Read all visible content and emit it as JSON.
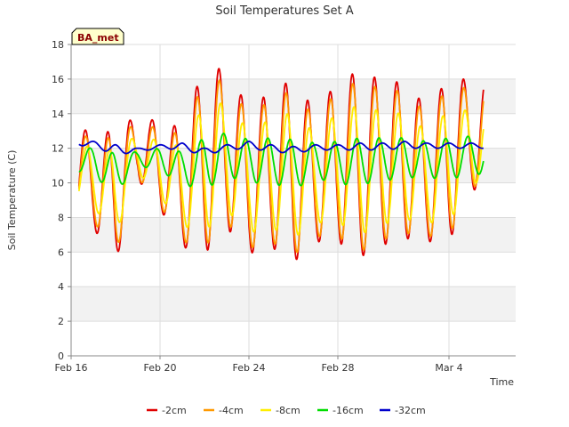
{
  "chart_data": {
    "type": "line",
    "title": "Soil Temperatures Set A",
    "xlabel": "Time",
    "ylabel": "Soil Temperature (C)",
    "badge": "BA_met",
    "ylim": [
      0,
      18
    ],
    "yticks": [
      0,
      2,
      4,
      6,
      8,
      10,
      12,
      14,
      16,
      18
    ],
    "xlim": [
      "2024-02-16",
      "2024-03-07"
    ],
    "xticks": [
      {
        "date": "2024-02-16",
        "label": "Feb 16"
      },
      {
        "date": "2024-02-20",
        "label": "Feb 20"
      },
      {
        "date": "2024-02-24",
        "label": "Feb 24"
      },
      {
        "date": "2024-02-28",
        "label": "Feb 28"
      },
      {
        "date": "2024-03-04",
        "label": "Mar 4"
      }
    ],
    "grid": true,
    "legend": "bottom",
    "dates": [
      "2024-02-16",
      "2024-02-17",
      "2024-02-18",
      "2024-02-19",
      "2024-02-20",
      "2024-02-21",
      "2024-02-22",
      "2024-02-23",
      "2024-02-24",
      "2024-02-25",
      "2024-02-26",
      "2024-02-27",
      "2024-02-28",
      "2024-02-29",
      "2024-03-01",
      "2024-03-02",
      "2024-03-03",
      "2024-03-04",
      "2024-03-05"
    ],
    "series": [
      {
        "name": "-2cm",
        "color": "#e00000",
        "phase": 0.65,
        "min": [
          8.2,
          7.4,
          5.4,
          10.2,
          8.5,
          6.3,
          5.9,
          7.4,
          5.9,
          6.3,
          5.4,
          6.6,
          6.6,
          5.7,
          6.4,
          6.8,
          6.6,
          6.6,
          9.6
        ],
        "max": [
          13.7,
          12.7,
          13.1,
          13.9,
          13.5,
          13.2,
          16.8,
          16.5,
          14.3,
          15.3,
          16.0,
          14.1,
          15.9,
          16.5,
          15.9,
          15.8,
          14.4,
          16.0,
          16.0
        ]
      },
      {
        "name": "-4cm",
        "color": "#ff9900",
        "phase": 0.67,
        "min": [
          8.6,
          7.8,
          5.9,
          10.3,
          8.7,
          6.6,
          6.3,
          7.7,
          6.2,
          6.6,
          5.8,
          6.9,
          6.9,
          6.0,
          6.7,
          7.1,
          6.9,
          6.9,
          9.8
        ],
        "max": [
          13.3,
          12.4,
          12.7,
          13.5,
          13.1,
          12.8,
          16.0,
          15.9,
          13.9,
          14.8,
          15.4,
          13.7,
          15.4,
          15.9,
          15.4,
          15.3,
          14.0,
          15.5,
          15.5
        ]
      },
      {
        "name": "-8cm",
        "color": "#ffee00",
        "phase": 0.72,
        "min": [
          9.2,
          8.6,
          7.0,
          10.6,
          9.2,
          7.5,
          7.2,
          8.4,
          7.1,
          7.4,
          6.8,
          7.7,
          7.7,
          7.0,
          7.6,
          7.9,
          7.7,
          7.7,
          10.0
        ],
        "max": [
          12.6,
          11.9,
          11.9,
          12.8,
          12.4,
          12.1,
          14.6,
          14.6,
          13.0,
          13.7,
          14.1,
          12.8,
          14.1,
          14.5,
          14.1,
          14.0,
          13.0,
          14.2,
          14.2
        ]
      },
      {
        "name": "-16cm",
        "color": "#00dd00",
        "phase": 0.85,
        "min": [
          10.8,
          10.4,
          9.4,
          11.0,
          10.7,
          9.9,
          9.6,
          10.4,
          10.0,
          10.0,
          9.6,
          10.3,
          9.9,
          9.9,
          10.1,
          10.3,
          10.3,
          10.2,
          10.5
        ],
        "max": [
          12.1,
          12.0,
          11.7,
          11.8,
          12.0,
          11.8,
          12.6,
          12.9,
          12.5,
          12.6,
          12.5,
          12.3,
          12.4,
          12.6,
          12.6,
          12.6,
          12.4,
          12.6,
          12.7
        ]
      },
      {
        "name": "-32cm",
        "color": "#0000cc",
        "phase": 0.0,
        "min": [
          12.2,
          12.1,
          11.6,
          11.8,
          12.0,
          11.9,
          11.6,
          11.9,
          12.0,
          11.8,
          11.7,
          11.9,
          11.9,
          11.9,
          11.9,
          12.0,
          12.0,
          12.0,
          12.0
        ],
        "max": [
          12.5,
          12.4,
          12.2,
          12.0,
          12.2,
          12.3,
          12.0,
          12.2,
          12.4,
          12.2,
          12.1,
          12.2,
          12.2,
          12.3,
          12.3,
          12.4,
          12.3,
          12.3,
          12.3
        ]
      }
    ]
  }
}
